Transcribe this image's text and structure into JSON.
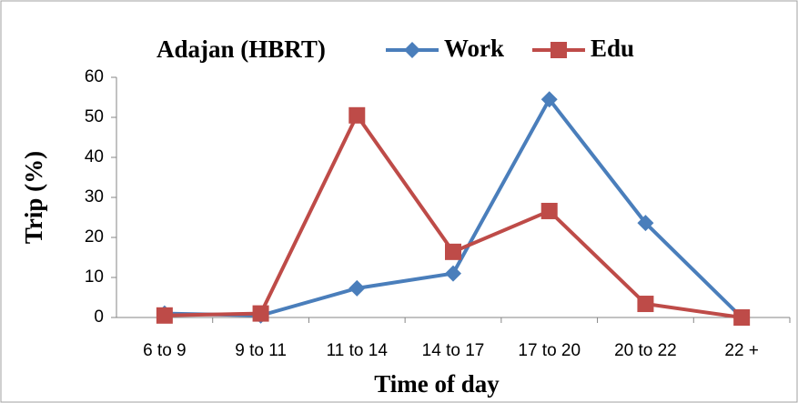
{
  "chart_data": {
    "type": "line",
    "title": "Adajan (HBRT)",
    "x_label": "Time of day",
    "y_label": "Trip (%)",
    "categories": [
      "6 to 9",
      "9 to 11",
      "11 to 14",
      "14 to 17",
      "17 to 20",
      "20 to 22",
      "22 +"
    ],
    "series": [
      {
        "name": "Work",
        "color": "#4a7ebb",
        "marker": "diamond",
        "values": [
          1,
          0.5,
          7.3,
          11,
          54.5,
          23.6,
          0
        ]
      },
      {
        "name": "Edu",
        "color": "#be4b48",
        "marker": "square",
        "values": [
          0.5,
          1,
          50.5,
          16.4,
          26.6,
          3.4,
          0
        ]
      }
    ],
    "ylim": [
      0,
      60
    ],
    "yticks": [
      0,
      10,
      20,
      30,
      40,
      50,
      60
    ],
    "grid": false
  }
}
